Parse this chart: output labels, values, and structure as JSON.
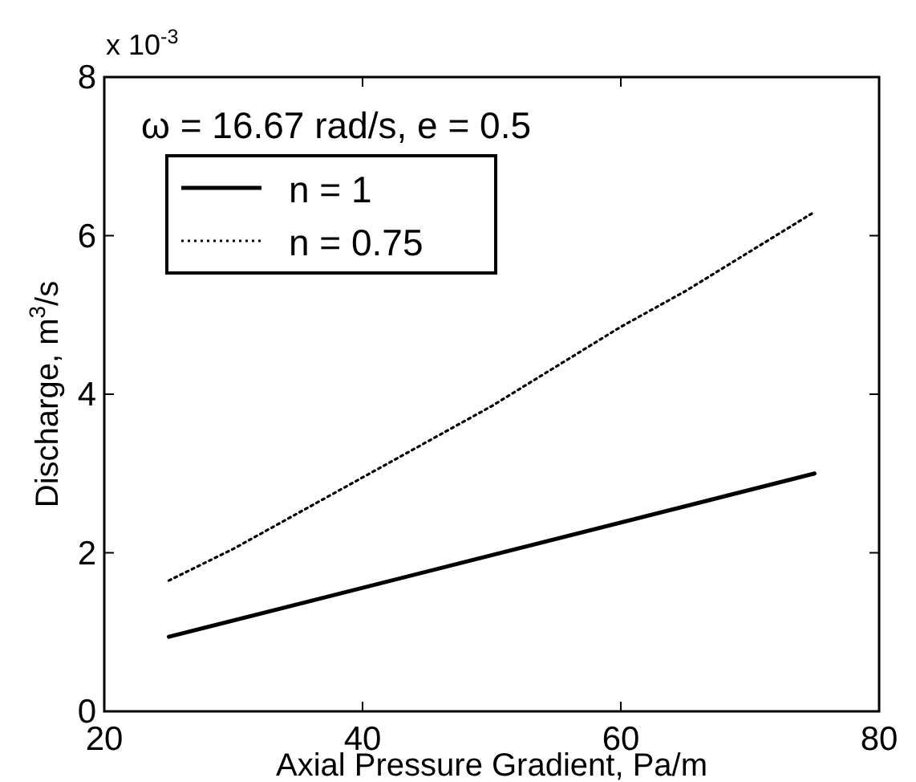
{
  "chart_data": {
    "type": "line",
    "xlabel": "Axial Pressure Gradient, Pa/m",
    "ylabel": "Discharge, m$^{3}$/s",
    "annotations": [
      "x 10$^{-3}$",
      "ω = 16.67 rad/s, e = 0.5"
    ],
    "xlim": [
      20,
      80
    ],
    "xticks": [
      20,
      40,
      60,
      80
    ],
    "ylim": [
      0,
      8
    ],
    "yticks": [
      0,
      2,
      4,
      6,
      8
    ],
    "legend": "top left",
    "grid": false,
    "series": [
      {
        "name": "n = 1",
        "color": "#000000",
        "line_style": "solid",
        "x": [
          25,
          75
        ],
        "values": [
          0.94,
          3.0
        ]
      },
      {
        "name": "n = 0.75",
        "color": "#000000",
        "line_style": "dotted",
        "x": [
          25,
          30,
          35,
          40,
          45,
          50,
          55,
          60,
          65,
          70,
          75
        ],
        "values": [
          1.65,
          2.05,
          2.5,
          2.95,
          3.4,
          3.85,
          4.35,
          4.85,
          5.3,
          5.8,
          6.3
        ]
      }
    ]
  }
}
